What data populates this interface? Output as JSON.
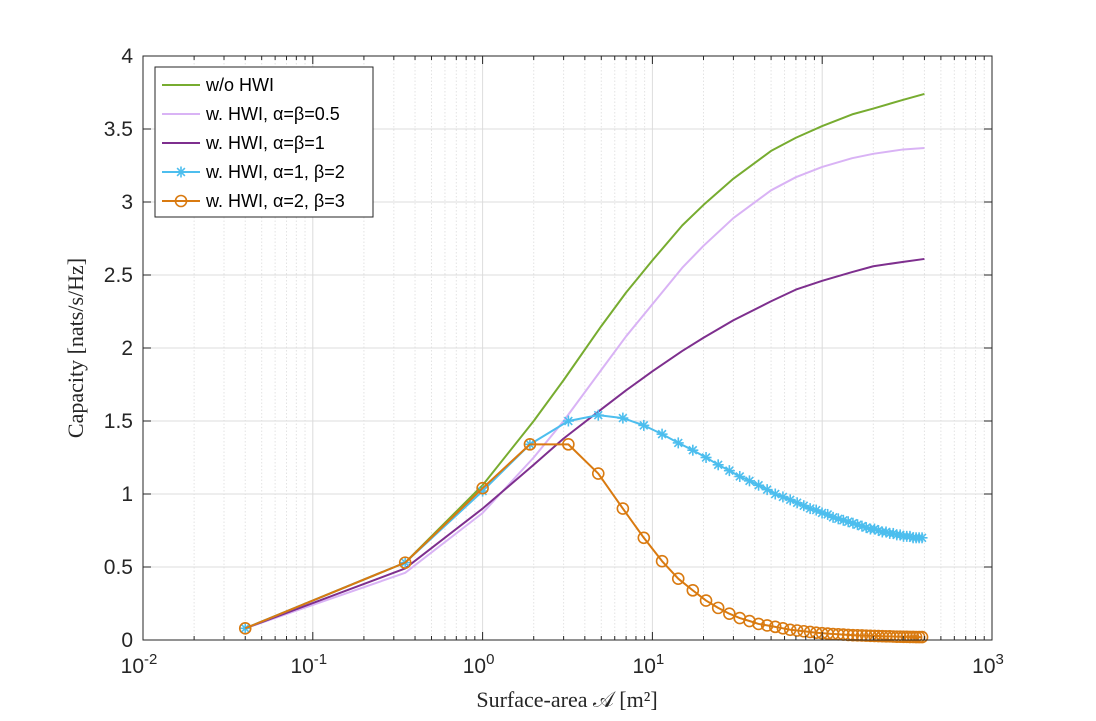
{
  "chart_data": {
    "type": "line",
    "title": "",
    "xlabel": "Surface-area 𝒜 [m²]",
    "ylabel": "Capacity [nats/s/Hz]",
    "xscale": "log",
    "xlim": [
      0.01,
      1000
    ],
    "ylim": [
      0,
      4
    ],
    "grid": true,
    "legend_position": "top-left",
    "x_ticks": [
      {
        "value": 0.01,
        "base": "10",
        "exp": "-2"
      },
      {
        "value": 0.1,
        "base": "10",
        "exp": "-1"
      },
      {
        "value": 1,
        "base": "10",
        "exp": "0"
      },
      {
        "value": 10,
        "base": "10",
        "exp": "1"
      },
      {
        "value": 100,
        "base": "10",
        "exp": "2"
      },
      {
        "value": 1000,
        "base": "10",
        "exp": "3"
      }
    ],
    "y_ticks": [
      {
        "value": 0,
        "label": "0"
      },
      {
        "value": 0.5,
        "label": "0.5"
      },
      {
        "value": 1,
        "label": "1"
      },
      {
        "value": 1.5,
        "label": "1.5"
      },
      {
        "value": 2,
        "label": "2"
      },
      {
        "value": 2.5,
        "label": "2.5"
      },
      {
        "value": 3,
        "label": "3"
      },
      {
        "value": 3.5,
        "label": "3.5"
      },
      {
        "value": 4,
        "label": "4"
      }
    ],
    "series": [
      {
        "name": "w/o HWI",
        "color": "#77ac30",
        "marker": "none",
        "x": [
          0.04,
          0.35,
          1,
          2,
          3,
          5,
          7,
          10,
          15,
          20,
          30,
          50,
          70,
          100,
          150,
          200,
          300,
          400
        ],
        "y": [
          0.08,
          0.53,
          1.06,
          1.5,
          1.78,
          2.15,
          2.38,
          2.6,
          2.84,
          2.98,
          3.16,
          3.35,
          3.44,
          3.52,
          3.6,
          3.64,
          3.7,
          3.74
        ]
      },
      {
        "name": "w. HWI, α=β=0.5",
        "color": "#d9b3f5",
        "marker": "none",
        "x": [
          0.04,
          0.35,
          1,
          2,
          3,
          5,
          7,
          10,
          15,
          20,
          30,
          50,
          70,
          100,
          150,
          200,
          300,
          400
        ],
        "y": [
          0.08,
          0.46,
          0.87,
          1.25,
          1.5,
          1.85,
          2.08,
          2.3,
          2.55,
          2.7,
          2.89,
          3.08,
          3.17,
          3.24,
          3.3,
          3.33,
          3.36,
          3.37
        ]
      },
      {
        "name": "w. HWI, α=β=1",
        "color": "#7e2f8e",
        "marker": "none",
        "x": [
          0.04,
          0.35,
          1,
          2,
          3,
          5,
          7,
          10,
          15,
          20,
          30,
          50,
          70,
          100,
          150,
          200,
          300,
          400
        ],
        "y": [
          0.08,
          0.49,
          0.9,
          1.2,
          1.38,
          1.58,
          1.71,
          1.84,
          1.98,
          2.07,
          2.19,
          2.32,
          2.4,
          2.46,
          2.52,
          2.56,
          2.59,
          2.61
        ]
      },
      {
        "name": "w. HWI, α=1, β=2",
        "color": "#4dbeee",
        "marker": "asterisk",
        "x": [
          0.04,
          0.35,
          1,
          1.9,
          3.2,
          4.8,
          6.7,
          8.9,
          11.4,
          14.2,
          17.3,
          20.7,
          24.4,
          28.4,
          32.7,
          37.3,
          42.2,
          47.4,
          52.9,
          58.7,
          64.8,
          71.2,
          77.9,
          84.9,
          92.2,
          99.8,
          107.7,
          115.9,
          124.4,
          133.2,
          142.3,
          151.7,
          161.4,
          171.4,
          181.7,
          192.3,
          203.2,
          214.4,
          225.9,
          237.7,
          249.8,
          262.2,
          274.9,
          287.9,
          301.2,
          314.8,
          328.7,
          342.9,
          357.4,
          372.2,
          387.3
        ],
        "y": [
          0.08,
          0.53,
          1.02,
          1.34,
          1.5,
          1.54,
          1.52,
          1.47,
          1.41,
          1.35,
          1.3,
          1.25,
          1.2,
          1.16,
          1.12,
          1.09,
          1.06,
          1.03,
          1.0,
          0.98,
          0.96,
          0.94,
          0.92,
          0.9,
          0.89,
          0.87,
          0.86,
          0.84,
          0.83,
          0.82,
          0.81,
          0.8,
          0.79,
          0.78,
          0.77,
          0.76,
          0.76,
          0.75,
          0.74,
          0.74,
          0.73,
          0.73,
          0.72,
          0.72,
          0.71,
          0.71,
          0.71,
          0.7,
          0.7,
          0.7,
          0.7
        ]
      },
      {
        "name": "w. HWI, α=2, β=3",
        "color": "#d97a10",
        "marker": "circle",
        "x": [
          0.04,
          0.35,
          1,
          1.9,
          3.2,
          4.8,
          6.7,
          8.9,
          11.4,
          14.2,
          17.3,
          20.7,
          24.4,
          28.4,
          32.7,
          37.3,
          42.2,
          47.4,
          52.9,
          58.7,
          64.8,
          71.2,
          77.9,
          84.9,
          92.2,
          99.8,
          107.7,
          115.9,
          124.4,
          133.2,
          142.3,
          151.7,
          161.4,
          171.4,
          181.7,
          192.3,
          203.2,
          214.4,
          225.9,
          237.7,
          249.8,
          262.2,
          274.9,
          287.9,
          301.2,
          314.8,
          328.7,
          342.9,
          357.4,
          372.2,
          387.3
        ],
        "y": [
          0.08,
          0.53,
          1.04,
          1.34,
          1.34,
          1.14,
          0.9,
          0.7,
          0.54,
          0.42,
          0.34,
          0.27,
          0.22,
          0.18,
          0.15,
          0.13,
          0.11,
          0.1,
          0.09,
          0.08,
          0.07,
          0.065,
          0.06,
          0.055,
          0.05,
          0.047,
          0.044,
          0.041,
          0.039,
          0.037,
          0.035,
          0.033,
          0.032,
          0.031,
          0.03,
          0.029,
          0.028,
          0.027,
          0.026,
          0.025,
          0.025,
          0.024,
          0.023,
          0.023,
          0.022,
          0.022,
          0.021,
          0.021,
          0.02,
          0.02,
          0.02
        ]
      }
    ]
  }
}
